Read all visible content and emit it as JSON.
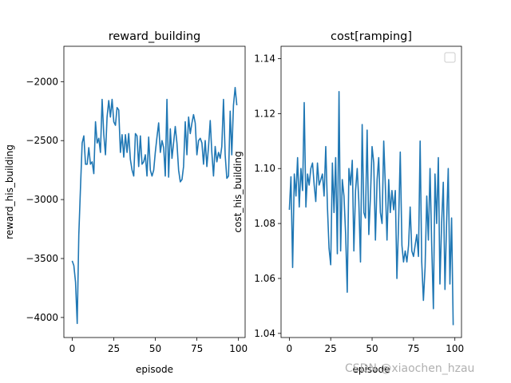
{
  "watermark": "CSDN @xiaochen_hzau",
  "chart_data": [
    {
      "type": "line",
      "title": "reward_building",
      "xlabel": "episode",
      "ylabel": "reward_his_building",
      "xlim": [
        -5,
        104
      ],
      "ylim": [
        -4170,
        -1700
      ],
      "xticks": [
        0,
        25,
        50,
        75,
        100
      ],
      "yticks": [
        -4000,
        -3500,
        -3000,
        -2500,
        -2000
      ],
      "grid": false,
      "color": "#1f77b4",
      "series": [
        {
          "x": [
            0,
            1,
            2,
            3,
            4,
            5,
            6,
            7,
            8,
            9,
            10,
            11,
            12,
            13,
            14,
            15,
            16,
            17,
            18,
            19,
            20,
            21,
            22,
            23,
            24,
            25,
            26,
            27,
            28,
            29,
            30,
            31,
            32,
            33,
            34,
            35,
            36,
            37,
            38,
            39,
            40,
            41,
            42,
            43,
            44,
            45,
            46,
            47,
            48,
            49,
            50,
            51,
            52,
            53,
            54,
            55,
            56,
            57,
            58,
            59,
            60,
            61,
            62,
            63,
            64,
            65,
            66,
            67,
            68,
            69,
            70,
            71,
            72,
            73,
            74,
            75,
            76,
            77,
            78,
            79,
            80,
            81,
            82,
            83,
            84,
            85,
            86,
            87,
            88,
            89,
            90,
            91,
            92,
            93,
            94,
            95,
            96,
            97,
            98,
            99
          ],
          "y": [
            -3520,
            -3560,
            -3700,
            -4050,
            -3300,
            -2900,
            -2520,
            -2460,
            -2700,
            -2700,
            -2560,
            -2700,
            -2680,
            -2780,
            -2340,
            -2520,
            -2480,
            -2600,
            -2150,
            -2450,
            -2620,
            -2300,
            -2160,
            -2300,
            -2150,
            -2340,
            -2370,
            -2220,
            -2240,
            -2600,
            -2450,
            -2640,
            -2450,
            -2600,
            -2440,
            -2660,
            -2750,
            -2800,
            -2440,
            -2460,
            -2720,
            -2460,
            -2700,
            -2680,
            -2620,
            -2800,
            -2470,
            -2750,
            -2800,
            -2750,
            -2600,
            -2470,
            -2350,
            -2600,
            -2500,
            -2560,
            -2800,
            -2150,
            -2810,
            -2400,
            -2650,
            -2520,
            -2380,
            -2520,
            -2750,
            -2850,
            -2830,
            -2720,
            -2340,
            -2620,
            -2300,
            -2440,
            -2350,
            -2280,
            -2350,
            -2620,
            -2500,
            -2480,
            -2520,
            -2700,
            -2500,
            -2720,
            -2550,
            -2330,
            -2600,
            -2800,
            -2550,
            -2680,
            -2600,
            -2650,
            -2550,
            -2150,
            -2620,
            -2820,
            -2800,
            -2250,
            -2620,
            -2200,
            -2050,
            -2200
          ]
        }
      ]
    },
    {
      "type": "line",
      "title": "cost[ramping]",
      "xlabel": "episode",
      "ylabel": "cost_his_building",
      "xlim": [
        -5,
        104
      ],
      "ylim": [
        1.0385,
        1.1445
      ],
      "xticks": [
        0,
        25,
        50,
        75,
        100
      ],
      "yticks": [
        1.04,
        1.06,
        1.08,
        1.1,
        1.12,
        1.14
      ],
      "grid": false,
      "legend": "upper-right",
      "color": "#1f77b4",
      "series": [
        {
          "x": [
            0,
            1,
            2,
            3,
            4,
            5,
            6,
            7,
            8,
            9,
            10,
            11,
            12,
            13,
            14,
            15,
            16,
            17,
            18,
            19,
            20,
            21,
            22,
            23,
            24,
            25,
            26,
            27,
            28,
            29,
            30,
            31,
            32,
            33,
            34,
            35,
            36,
            37,
            38,
            39,
            40,
            41,
            42,
            43,
            44,
            45,
            46,
            47,
            48,
            49,
            50,
            51,
            52,
            53,
            54,
            55,
            56,
            57,
            58,
            59,
            60,
            61,
            62,
            63,
            64,
            65,
            66,
            67,
            68,
            69,
            70,
            71,
            72,
            73,
            74,
            75,
            76,
            77,
            78,
            79,
            80,
            81,
            82,
            83,
            84,
            85,
            86,
            87,
            88,
            89,
            90,
            91,
            92,
            93,
            94,
            95,
            96,
            97,
            98,
            99
          ],
          "y": [
            1.085,
            1.097,
            1.064,
            1.098,
            1.09,
            1.104,
            1.086,
            1.1,
            1.092,
            1.124,
            1.086,
            1.098,
            1.094,
            1.1,
            1.102,
            1.094,
            1.088,
            1.102,
            1.094,
            1.096,
            1.098,
            1.09,
            1.108,
            1.086,
            1.071,
            1.065,
            1.102,
            1.084,
            1.104,
            1.069,
            1.128,
            1.07,
            1.096,
            1.09,
            1.076,
            1.055,
            1.1,
            1.094,
            1.103,
            1.07,
            1.092,
            1.1,
            1.088,
            1.066,
            1.116,
            1.084,
            1.082,
            1.114,
            1.076,
            1.09,
            1.108,
            1.102,
            1.074,
            1.096,
            1.104,
            1.084,
            1.08,
            1.11,
            1.094,
            1.074,
            1.096,
            1.084,
            1.092,
            1.085,
            1.092,
            1.06,
            1.08,
            1.106,
            1.072,
            1.066,
            1.07,
            1.066,
            1.072,
            1.086,
            1.07,
            1.068,
            1.072,
            1.076,
            1.068,
            1.11,
            1.066,
            1.052,
            1.064,
            1.09,
            1.074,
            1.1,
            1.072,
            1.049,
            1.098,
            1.08,
            1.104,
            1.058,
            1.08,
            1.095,
            1.056,
            1.08,
            1.1,
            1.058,
            1.082,
            1.043
          ]
        }
      ]
    }
  ]
}
